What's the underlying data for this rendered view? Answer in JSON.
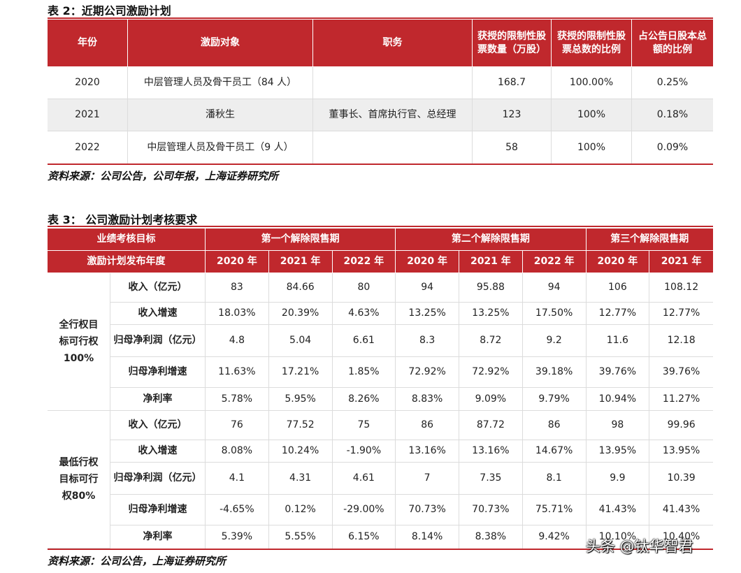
{
  "table2": {
    "title": "表 2：近期公司激励计划",
    "headers": [
      "年份",
      "激励对象",
      "职务",
      "获授的限制性股票数量（万股）",
      "获授的限制性股票总数的比例",
      "占公告日股本总额的比例"
    ],
    "rows": [
      [
        "2020",
        "中层管理人员及骨干员工（84 人）",
        "",
        "168.7",
        "100.00%",
        "0.25%"
      ],
      [
        "2021",
        "潘秋生",
        "董事长、首席执行官、总经理",
        "123",
        "100%",
        "0.18%"
      ],
      [
        "2022",
        "中层管理人员及骨干员工（9 人）",
        "",
        "58",
        "100%",
        "0.09%"
      ]
    ],
    "source": "资料来源：公司公告，公司年报，上海证券研究所"
  },
  "table3": {
    "title": "表 3：  公司激励计划考核要求",
    "header1": [
      "业绩考核目标",
      "第一个解除限售期",
      "第二个解除限售期",
      "第三个解除限售期"
    ],
    "header2_label": "激励计划发布年度",
    "years": [
      "2020 年",
      "2021 年",
      "2022 年",
      "2020 年",
      "2021 年",
      "2022 年",
      "2020 年",
      "2021 年"
    ],
    "groups": [
      {
        "label": "全行权目标可行权100%",
        "rows": [
          {
            "metric": "收入（亿元）",
            "values": [
              "83",
              "84.66",
              "80",
              "94",
              "95.88",
              "94",
              "106",
              "108.12"
            ]
          },
          {
            "metric": "收入增速",
            "values": [
              "18.03%",
              "20.39%",
              "4.63%",
              "13.25%",
              "13.25%",
              "17.50%",
              "12.77%",
              "12.77%"
            ]
          },
          {
            "metric": "归母净利润（亿元）",
            "values": [
              "4.8",
              "5.04",
              "6.61",
              "8.3",
              "8.72",
              "9.2",
              "11.6",
              "12.18"
            ]
          },
          {
            "metric": "归母净利增速",
            "values": [
              "11.63%",
              "17.21%",
              "1.85%",
              "72.92%",
              "72.92%",
              "39.18%",
              "39.76%",
              "39.76%"
            ]
          },
          {
            "metric": "净利率",
            "values": [
              "5.78%",
              "5.95%",
              "8.26%",
              "8.83%",
              "9.09%",
              "9.79%",
              "10.94%",
              "11.27%"
            ]
          }
        ]
      },
      {
        "label": "最低行权目标可行权80%",
        "rows": [
          {
            "metric": "收入（亿元）",
            "values": [
              "76",
              "77.52",
              "75",
              "86",
              "87.72",
              "86",
              "98",
              "99.96"
            ]
          },
          {
            "metric": "收入增速",
            "values": [
              "8.08%",
              "10.24%",
              "-1.90%",
              "13.16%",
              "13.16%",
              "14.67%",
              "13.95%",
              "13.95%"
            ]
          },
          {
            "metric": "归母净利润（亿元）",
            "values": [
              "4.1",
              "4.31",
              "4.61",
              "7",
              "7.35",
              "8.1",
              "9.9",
              "10.39"
            ]
          },
          {
            "metric": "归母净利增速",
            "values": [
              "-4.65%",
              "0.12%",
              "-29.00%",
              "70.73%",
              "70.73%",
              "75.71%",
              "41.43%",
              "41.43%"
            ]
          },
          {
            "metric": "净利率",
            "values": [
              "5.39%",
              "5.55%",
              "6.15%",
              "8.14%",
              "8.38%",
              "9.42%",
              "10.10%",
              "10.40%"
            ]
          }
        ]
      }
    ],
    "source": "资料来源：公司公告，上海证券研究所"
  },
  "watermark": "头条 @钛华智君",
  "colors": {
    "accent": "#c0282d",
    "alt_row": "#eeeeee"
  }
}
